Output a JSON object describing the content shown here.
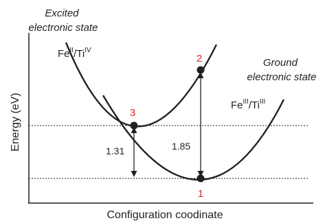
{
  "axes": {
    "x_label": "Configuration coodinate",
    "y_label": "Energy (eV)"
  },
  "excited_state": {
    "title_line1": "Excited",
    "title_line2": "electronic state",
    "species": {
      "fe": "Fe",
      "fe_sup": "II",
      "ti": "/Ti",
      "ti_sup": "IV"
    }
  },
  "ground_state": {
    "title_line1": "Ground",
    "title_line2": "electronic state",
    "species": {
      "fe": "Fe",
      "fe_sup": "III",
      "ti": "/Ti",
      "ti_sup": "III"
    }
  },
  "points": {
    "p1": "1",
    "p2": "2",
    "p3": "3"
  },
  "energies": {
    "crossing_gap": "1.31",
    "vertical_gap": "1.85"
  },
  "colors": {
    "curve": "#231f20",
    "point_label": "#e3231b"
  }
}
